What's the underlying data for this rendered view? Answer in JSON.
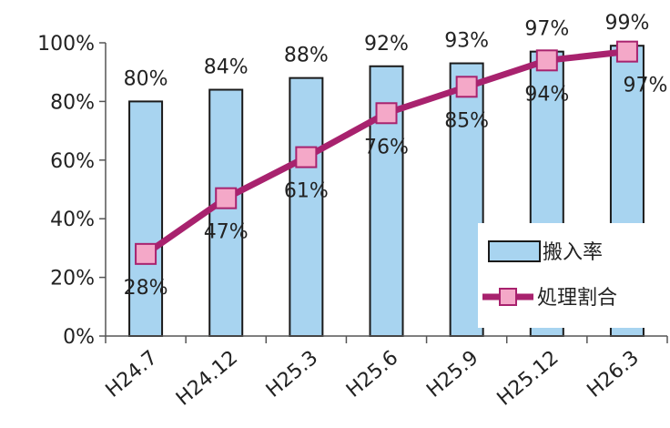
{
  "chart_data": {
    "type": "bar",
    "categories": [
      "H24.7",
      "H24.12",
      "H25.3",
      "H25.6",
      "H25.9",
      "H25.12",
      "H26.3"
    ],
    "ylim": [
      0,
      100
    ],
    "yticks": [
      "0%",
      "20%",
      "40%",
      "60%",
      "80%",
      "100%"
    ],
    "yticks_values": [
      0,
      20,
      40,
      60,
      80,
      100
    ],
    "grid": false,
    "legend_position": "bottom-right",
    "series": [
      {
        "name": "搬入率",
        "type": "bar",
        "color": "#a8d4f0",
        "edge_color": "#1a1a1a",
        "values": [
          80,
          84,
          88,
          92,
          93,
          97,
          99
        ],
        "labels": [
          "80%",
          "84%",
          "88%",
          "92%",
          "93%",
          "97%",
          "99%"
        ]
      },
      {
        "name": "処理割合",
        "type": "line",
        "color": "#a8226e",
        "marker_color": "#f4a8c8",
        "values": [
          28,
          47,
          61,
          76,
          85,
          94,
          97
        ],
        "labels": [
          "28%",
          "47%",
          "61%",
          "76%",
          "85%",
          "94%",
          "97%"
        ]
      }
    ]
  }
}
